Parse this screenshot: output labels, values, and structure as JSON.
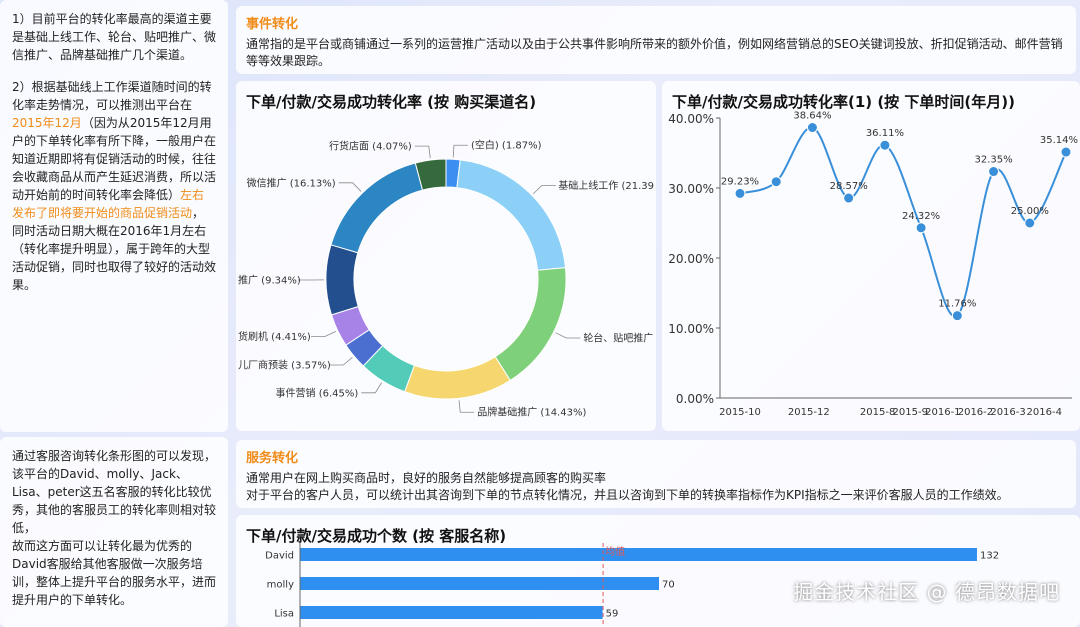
{
  "notes": {
    "top_left": {
      "p1": "1）目前平台的转化率最高的渠道主要是基础上线工作、轮台、贴吧推广、微信推广、品牌基础推广几个渠道。",
      "p2_a": "2）根据基础线上工作渠道随时间的转化率走势情况，可以推测出平台在",
      "p2_hl1": "2015年12月",
      "p2_b": "（因为从2015年12月用户的下单转化率有所下降，一般用户在知道近期即将有促销活动的时候，往往会收藏商品从而产生延迟消费，所以活动开始前的时间转化率会降低）",
      "p2_hl2": "左右发布了即将要开始的商品促销活动",
      "p2_c": "，同时活动日期大概在2016年1月左右（转化率提升明显），属于跨年的大型活动促销，同时也取得了较好的活动效果。"
    },
    "bottom_left": {
      "p1": "通过客服咨询转化条形图的可以发现，",
      "p2": "该平台的David、molly、Jack、Lisa、peter这五名客服的转化比较优秀，其他的客服员工的转化率则相对较低，",
      "p3": "故而这方面可以让转化最为优秀的David客服给其他客服做一次服务培训，整体上提升平台的服务水平，进而提升用户的下单转化。"
    }
  },
  "event_box": {
    "title": "事件转化",
    "text": "通常指的是平台或商铺通过一系列的运营推广活动以及由于公共事件影响所带来的额外价值，例如网络营销总的SEO关键词投放、折扣促销活动、邮件营销等等效果跟踪。"
  },
  "service_box": {
    "title": "服务转化",
    "line1": "通常用户在网上购买商品时，良好的服务自然能够提高顾客的购买率",
    "line2": "对于平台的客户人员，可以统计出其咨询到下单的节点转化情况，并且以咨询到下单的转换率指标作为KPI指标之一来评价客服人员的工作绩效。"
  },
  "watermark": "掘金技术社区 @ 德昂数据吧",
  "chart_data": [
    {
      "type": "pie",
      "title": "下单/付款/交易成功转化率 (按 购买渠道名)",
      "donut": true,
      "slices": [
        {
          "label": "(空白) (1.87%)",
          "value": 1.87,
          "color": "#3b8ff0"
        },
        {
          "label": "基础上线工作 (21.39",
          "value": 21.39,
          "color": "#8cd0f8"
        },
        {
          "label": "轮台、贴吧推广",
          "value": 17.35,
          "color": "#7fd07a"
        },
        {
          "label": "品牌基础推广 (14.43%)",
          "value": 14.43,
          "color": "#f6d66e"
        },
        {
          "label": "事件营销 (6.45%)",
          "value": 6.45,
          "color": "#52cbb8"
        },
        {
          "label": "儿厂商预装 (3.57%)",
          "value": 3.57,
          "color": "#4a6fd1"
        },
        {
          "label": "货刷机 (4.41%)",
          "value": 4.41,
          "color": "#a783e8"
        },
        {
          "label": "推广 (9.34%)",
          "value": 9.34,
          "color": "#234f8e"
        },
        {
          "label": "微信推广 (16.13%)",
          "value": 16.13,
          "color": "#2c86c4"
        },
        {
          "label": "行货店面 (4.07%)",
          "value": 4.07,
          "color": "#356a3c"
        }
      ]
    },
    {
      "type": "line",
      "title": "下单/付款/交易成功转化率(1) (按 下单时间(年月))",
      "x_ticks": [
        "2015-10",
        "2015-12",
        "2015-8",
        "2015-9",
        "2016-1",
        "2016-2",
        "2016-3",
        "2016-4"
      ],
      "values": [
        29.23,
        30.9,
        38.64,
        28.57,
        36.11,
        24.32,
        11.76,
        32.35,
        25.0,
        35.14
      ],
      "point_labels": [
        "29.23%",
        "",
        "38.64%",
        "28.57%",
        "36.11%",
        "24.32%",
        "11.76%",
        "32.35%",
        "25.00%",
        "35.14%"
      ],
      "y_ticks": [
        "0.00%",
        "10.00%",
        "20.00%",
        "30.00%",
        "40.00%"
      ],
      "ylim": [
        0,
        40
      ],
      "color": "#3a8fd9"
    },
    {
      "type": "bar",
      "orientation": "horizontal",
      "title": "下单/付款/交易成功个数 (按 客服名称)",
      "categories": [
        "David",
        "molly",
        "Lisa"
      ],
      "values": [
        132,
        70,
        59
      ],
      "reference_label": "均值",
      "reference_value": 59,
      "xlim": [
        0,
        140
      ],
      "color": "#2f8ff0"
    }
  ]
}
